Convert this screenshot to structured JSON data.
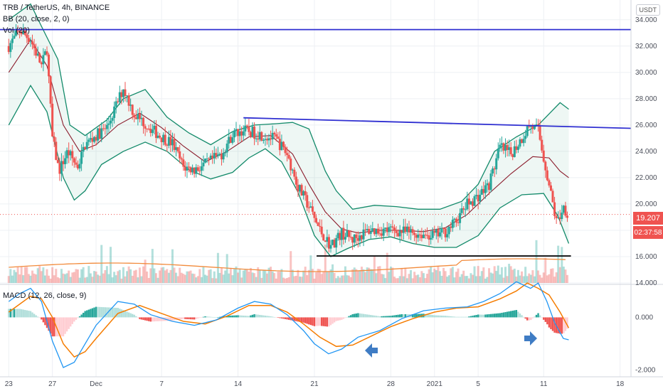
{
  "header": {
    "symbol": "TRB / TetherUS, 4h, BINANCE",
    "bb": "BB (20, close, 2, 0)",
    "vol": "Vol (20)",
    "macd": "MACD (12, 26, close, 9)",
    "currency": "USDT"
  },
  "price_badge": {
    "value": "19.207",
    "countdown": "02:37:58"
  },
  "colors": {
    "up": "#26a69a",
    "down": "#ef5350",
    "bb_band": "#138a6a",
    "bb_basis": "#8b1c2c",
    "trendline": "#2f2fd1",
    "support": "#111111",
    "macd": "#2196f3",
    "signal": "#f57c00",
    "arrow": "#3f7cc4"
  },
  "chart_data": [
    {
      "type": "candlestick",
      "title": "TRB / TetherUS, 4h, BINANCE",
      "y_ticks": [
        14.0,
        16.0,
        18.0,
        20.0,
        22.0,
        24.0,
        26.0,
        28.0,
        30.0,
        32.0,
        34.0
      ],
      "y_tick_labels": [
        "14.000",
        "16.000",
        "18.000",
        "20.000",
        "22.000",
        "24.000",
        "26.000",
        "28.000",
        "30.000",
        "32.000",
        "34.000"
      ],
      "ylim": [
        14,
        35.5
      ],
      "x_tick_labels": [
        {
          "label": "23",
          "day": 0
        },
        {
          "label": "27",
          "day": 4
        },
        {
          "label": "Dec",
          "day": 8
        },
        {
          "label": "7",
          "day": 14
        },
        {
          "label": "14",
          "day": 21
        },
        {
          "label": "21",
          "day": 28
        },
        {
          "label": "28",
          "day": 35
        },
        {
          "label": "2021",
          "day": 39
        },
        {
          "label": "5",
          "day": 43
        },
        {
          "label": "11",
          "day": 49
        },
        {
          "label": "18",
          "day": 56
        }
      ],
      "x_range_days": [
        -0.8,
        57
      ],
      "last_price": 19.207,
      "price_path": [
        [
          0,
          32.0
        ],
        [
          1,
          33.2
        ],
        [
          2,
          32.5
        ],
        [
          3,
          30.5
        ],
        [
          3.5,
          31.8
        ],
        [
          4,
          25.0
        ],
        [
          4.6,
          22.5
        ],
        [
          5.4,
          24.0
        ],
        [
          6.3,
          22.8
        ],
        [
          7,
          24.5
        ],
        [
          8,
          25.2
        ],
        [
          9,
          25.8
        ],
        [
          10.5,
          28.8
        ],
        [
          11.5,
          26.8
        ],
        [
          12.8,
          25.9
        ],
        [
          13.8,
          25.2
        ],
        [
          15,
          24.6
        ],
        [
          16,
          22.8
        ],
        [
          17,
          22.6
        ],
        [
          18,
          23.0
        ],
        [
          19.5,
          23.8
        ],
        [
          20.5,
          25.3
        ],
        [
          21.5,
          25.6
        ],
        [
          23,
          25.3
        ],
        [
          24.5,
          24.9
        ],
        [
          25.5,
          23.8
        ],
        [
          26.5,
          21.3
        ],
        [
          27.5,
          19.8
        ],
        [
          28.5,
          18.0
        ],
        [
          29.5,
          16.8
        ],
        [
          30.5,
          17.8
        ],
        [
          31.5,
          17.3
        ],
        [
          33,
          18.0
        ],
        [
          35,
          18.0
        ],
        [
          37,
          17.8
        ],
        [
          39,
          17.6
        ],
        [
          40,
          17.9
        ],
        [
          41,
          18.7
        ],
        [
          42,
          20.0
        ],
        [
          43,
          20.6
        ],
        [
          44,
          21.5
        ],
        [
          45,
          24.3
        ],
        [
          46,
          23.8
        ],
        [
          47,
          25.0
        ],
        [
          47.7,
          26.0
        ],
        [
          48.5,
          25.6
        ],
        [
          49,
          23.5
        ],
        [
          49.6,
          21.0
        ],
        [
          50.2,
          18.5
        ],
        [
          50.8,
          19.8
        ],
        [
          51.3,
          19.2
        ]
      ],
      "bollinger": {
        "upper": [
          [
            0,
            34.0
          ],
          [
            2,
            35.2
          ],
          [
            3,
            33.5
          ],
          [
            4.5,
            31.0
          ],
          [
            5.6,
            26.0
          ],
          [
            7,
            25.2
          ],
          [
            9,
            26.4
          ],
          [
            10.5,
            28.0
          ],
          [
            12.5,
            28.7
          ],
          [
            14.5,
            26.6
          ],
          [
            16.5,
            25.4
          ],
          [
            18.5,
            24.5
          ],
          [
            20.5,
            25.5
          ],
          [
            22.5,
            26.0
          ],
          [
            24.5,
            26.1
          ],
          [
            26,
            26.2
          ],
          [
            27.5,
            25.7
          ],
          [
            29,
            22.5
          ],
          [
            30,
            21.0
          ],
          [
            31.5,
            19.6
          ],
          [
            33.5,
            19.9
          ],
          [
            35.5,
            19.8
          ],
          [
            37.5,
            19.6
          ],
          [
            39.5,
            19.6
          ],
          [
            41.5,
            20.2
          ],
          [
            43,
            21.5
          ],
          [
            44.5,
            24.0
          ],
          [
            46.5,
            25.1
          ],
          [
            48.5,
            26.0
          ],
          [
            50.5,
            27.7
          ],
          [
            51.3,
            27.2
          ]
        ],
        "basis": [
          [
            0,
            30.0
          ],
          [
            2,
            32.5
          ],
          [
            3.5,
            30.5
          ],
          [
            5,
            26.0
          ],
          [
            6.5,
            24.0
          ],
          [
            8,
            24.5
          ],
          [
            10,
            26.0
          ],
          [
            12,
            26.9
          ],
          [
            14,
            25.8
          ],
          [
            16,
            24.4
          ],
          [
            18,
            23.2
          ],
          [
            20,
            24.0
          ],
          [
            22,
            25.1
          ],
          [
            24,
            25.2
          ],
          [
            26,
            23.8
          ],
          [
            27.5,
            21.5
          ],
          [
            29,
            19.4
          ],
          [
            30.5,
            18.1
          ],
          [
            32,
            17.8
          ],
          [
            34,
            18.0
          ],
          [
            36,
            18.0
          ],
          [
            38,
            17.9
          ],
          [
            40,
            18.2
          ],
          [
            42,
            19.2
          ],
          [
            44,
            20.8
          ],
          [
            46,
            22.3
          ],
          [
            48,
            23.6
          ],
          [
            49.5,
            23.5
          ],
          [
            50.5,
            22.5
          ],
          [
            51.3,
            22.0
          ]
        ],
        "lower": [
          [
            0,
            26.0
          ],
          [
            2,
            29.0
          ],
          [
            3.5,
            27.0
          ],
          [
            5,
            22.0
          ],
          [
            6,
            20.3
          ],
          [
            7,
            21.0
          ],
          [
            8.5,
            23.0
          ],
          [
            10.5,
            24.0
          ],
          [
            12.5,
            24.7
          ],
          [
            14.5,
            24.0
          ],
          [
            16.5,
            22.6
          ],
          [
            18.5,
            21.9
          ],
          [
            20.5,
            22.4
          ],
          [
            22,
            23.5
          ],
          [
            23.5,
            24.2
          ],
          [
            25,
            23.2
          ],
          [
            26.5,
            20.9
          ],
          [
            28,
            17.6
          ],
          [
            29.5,
            16.0
          ],
          [
            31,
            16.6
          ],
          [
            33,
            17.3
          ],
          [
            35,
            17.5
          ],
          [
            37,
            17.0
          ],
          [
            39,
            16.7
          ],
          [
            41,
            16.7
          ],
          [
            43,
            17.6
          ],
          [
            45,
            19.7
          ],
          [
            47,
            20.7
          ],
          [
            49,
            20.8
          ],
          [
            50.3,
            19.1
          ],
          [
            51.3,
            17.0
          ]
        ]
      },
      "trendlines": [
        {
          "name": "upper resistance",
          "points": [
            [
              -0.8,
              33.25
            ],
            [
              57,
              33.25
            ]
          ],
          "color": "#2f2fd1"
        },
        {
          "name": "descending resistance",
          "points": [
            [
              21.5,
              26.55
            ],
            [
              57,
              25.75
            ]
          ],
          "color": "#2f2fd1"
        },
        {
          "name": "support",
          "points": [
            [
              28.2,
              16.05
            ],
            [
              51.5,
              16.05
            ]
          ],
          "color": "#111111"
        }
      ]
    },
    {
      "type": "line",
      "title": "MACD (12, 26, close, 9)",
      "y_ticks": [
        0.0,
        -2.0
      ],
      "y_tick_labels": [
        "0.000",
        "-2.000"
      ],
      "ylim": [
        -2.25,
        1.25
      ],
      "series": [
        {
          "name": "MACD",
          "color": "#2196f3",
          "points": [
            [
              0,
              0.6
            ],
            [
              1,
              0.9
            ],
            [
              2,
              1.1
            ],
            [
              3,
              0.6
            ],
            [
              4,
              -0.9
            ],
            [
              5,
              -1.9
            ],
            [
              6,
              -1.7
            ],
            [
              7,
              -1.0
            ],
            [
              8,
              -0.3
            ],
            [
              10,
              0.6
            ],
            [
              11.5,
              0.5
            ],
            [
              13,
              0.1
            ],
            [
              15,
              -0.15
            ],
            [
              17,
              -0.3
            ],
            [
              19,
              -0.1
            ],
            [
              21,
              0.35
            ],
            [
              22.5,
              0.6
            ],
            [
              24,
              0.5
            ],
            [
              25.5,
              0.1
            ],
            [
              27,
              -0.5
            ],
            [
              28,
              -1.0
            ],
            [
              29.3,
              -1.38
            ],
            [
              30.5,
              -1.2
            ],
            [
              32,
              -0.75
            ],
            [
              34,
              -0.5
            ],
            [
              36,
              -0.05
            ],
            [
              38,
              0.25
            ],
            [
              40,
              0.35
            ],
            [
              42,
              0.4
            ],
            [
              43.5,
              0.6
            ],
            [
              45,
              0.9
            ],
            [
              46.5,
              1.35
            ],
            [
              47.8,
              1.1
            ],
            [
              48.5,
              1.3
            ],
            [
              49.3,
              0.6
            ],
            [
              50,
              -0.2
            ],
            [
              50.8,
              -0.8
            ],
            [
              51.3,
              -0.85
            ]
          ]
        },
        {
          "name": "Signal",
          "color": "#f57c00",
          "points": [
            [
              0,
              0.2
            ],
            [
              1,
              0.5
            ],
            [
              2,
              0.8
            ],
            [
              3,
              0.7
            ],
            [
              4,
              0.0
            ],
            [
              5,
              -1.0
            ],
            [
              6,
              -1.5
            ],
            [
              7,
              -1.3
            ],
            [
              8,
              -0.8
            ],
            [
              10,
              0.15
            ],
            [
              12,
              0.45
            ],
            [
              14,
              0.15
            ],
            [
              16,
              -0.15
            ],
            [
              18,
              -0.25
            ],
            [
              20,
              0.05
            ],
            [
              22,
              0.45
            ],
            [
              24,
              0.45
            ],
            [
              25.5,
              0.2
            ],
            [
              27,
              -0.25
            ],
            [
              28.5,
              -0.75
            ],
            [
              30,
              -1.1
            ],
            [
              31.5,
              -1.05
            ],
            [
              33,
              -0.75
            ],
            [
              35,
              -0.35
            ],
            [
              37,
              -0.05
            ],
            [
              39,
              0.2
            ],
            [
              41,
              0.35
            ],
            [
              43,
              0.4
            ],
            [
              45,
              0.7
            ],
            [
              46.5,
              1.0
            ],
            [
              47.5,
              1.3
            ],
            [
              48.5,
              1.1
            ],
            [
              49.5,
              0.85
            ],
            [
              50.5,
              0.2
            ],
            [
              51.3,
              -0.4
            ]
          ]
        }
      ]
    }
  ]
}
